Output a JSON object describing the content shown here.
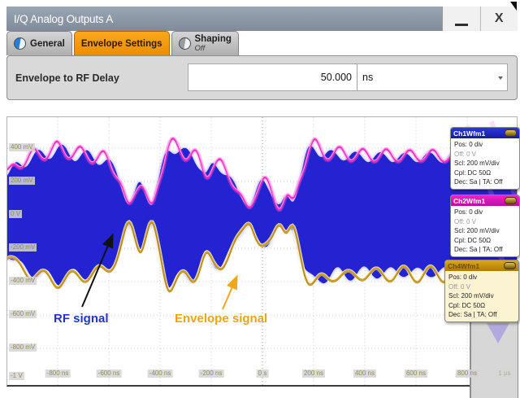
{
  "window": {
    "title": "I/Q Analog Outputs A",
    "controls": {
      "minimize_symbol": "_",
      "close_symbol": "X"
    }
  },
  "tabs": [
    {
      "label": "General",
      "indicator": "blue-half-circle",
      "selected": false
    },
    {
      "label": "Envelope Settings",
      "selected": true
    },
    {
      "label": "Shaping",
      "sublabel": "Off",
      "indicator": "gray-half-circle",
      "selected": false
    }
  ],
  "form": {
    "label": "Envelope to RF Delay",
    "value": "50.000",
    "unit": "ns"
  },
  "scope": {
    "y_axis_labels": [
      "400 mV",
      "200 mV",
      "0 V",
      "-200 mV",
      "-400 mV",
      "-600 mV",
      "-800 mV",
      "-1 V"
    ],
    "x_axis_labels": [
      "-800 ns",
      "-600 ns",
      "-400 ns",
      "-200 ns",
      "0 s",
      "200 ns",
      "400 ns",
      "600 ns",
      "800 ns",
      "1 µs"
    ],
    "annotations": [
      {
        "text": "RF signal",
        "color": "#2233cc"
      },
      {
        "text": "Envelope signal",
        "color": "#eaa513"
      }
    ],
    "channels": [
      {
        "name": "Ch1Wfm1",
        "header_color": "#2c36df",
        "header_color2": "#161d9e",
        "text_color": "#ffffff",
        "body_color": "#ffffff",
        "lines": [
          "Pos: 0 div",
          "Off: 0 V",
          "Scl: 200 mV/div",
          "Cpl: DC 50Ω",
          "Dec: Sa | TA: Off"
        ]
      },
      {
        "name": "Ch2Wfm1",
        "header_color": "#f523cd",
        "header_color2": "#b60f98",
        "text_color": "#ffffff",
        "body_color": "#ffffff",
        "lines": [
          "Pos: 0 div",
          "Off: 0 V",
          "Scl: 200 mV/div",
          "Cpl: DC 50Ω",
          "Dec: Sa | TA: Off"
        ]
      },
      {
        "name": "Ch4Wfm1",
        "header_color": "#dca818",
        "header_color2": "#a87c08",
        "text_color": "#6b4e00",
        "body_color": "#fbf3d2",
        "lines": [
          "Pos: 0 div",
          "Off: 0 V",
          "Scl: 200 mV/div",
          "Cpl: DC 50Ω",
          "Dec: Sa | TA: Off"
        ]
      }
    ],
    "chart_data": {
      "type": "line",
      "x_unit": "ns",
      "y_unit": "mV",
      "x_range_ns": [
        -1000,
        1010
      ],
      "y_range_mV": [
        -1050,
        620
      ],
      "x_scale": "200 ns/div",
      "y_scale": "200 mV/div",
      "series_note": "Blue Ch1 = amplitude-modulated RF burst (filled band ±envelope around 0 V); magenta Ch2 = envelope signal riding the top edge; yellow Ch4 = inverted envelope riding the bottom edge. envelope_points = [time_ns, envelope_amplitude_mV].",
      "colors": {
        "rf": "#2323d2",
        "envelope_top": "#f02cc4",
        "envelope_bottom": "#cf9e22"
      },
      "envelope_points": [
        [
          -997,
          220
        ],
        [
          -959,
          302
        ],
        [
          -895,
          341
        ],
        [
          -800,
          390
        ],
        [
          -737,
          361
        ],
        [
          -673,
          346
        ],
        [
          -610,
          327
        ],
        [
          -562,
          234
        ],
        [
          -540,
          117
        ],
        [
          -521,
          34
        ],
        [
          -498,
          127
        ],
        [
          -476,
          224
        ],
        [
          -451,
          98
        ],
        [
          -429,
          29
        ],
        [
          -400,
          234
        ],
        [
          -368,
          429
        ],
        [
          -337,
          390
        ],
        [
          -305,
          356
        ],
        [
          -273,
          371
        ],
        [
          -241,
          293
        ],
        [
          -219,
          205
        ],
        [
          -197,
          302
        ],
        [
          -165,
          293
        ],
        [
          -133,
          234
        ],
        [
          -102,
          156
        ],
        [
          -70,
          73
        ],
        [
          -48,
          34
        ],
        [
          -22,
          146
        ],
        [
          0,
          220
        ],
        [
          25,
          171
        ],
        [
          51,
          73
        ],
        [
          70,
          39
        ],
        [
          95,
          137
        ],
        [
          121,
          49
        ],
        [
          146,
          220
        ],
        [
          175,
          366
        ],
        [
          200,
          410
        ],
        [
          232,
          380
        ],
        [
          279,
          341
        ],
        [
          327,
          371
        ],
        [
          375,
          332
        ],
        [
          422,
          361
        ],
        [
          470,
          332
        ],
        [
          517,
          361
        ],
        [
          565,
          327
        ],
        [
          613,
          361
        ],
        [
          660,
          332
        ],
        [
          708,
          356
        ],
        [
          756,
          327
        ],
        [
          803,
          356
        ],
        [
          851,
          332
        ],
        [
          898,
          356
        ],
        [
          946,
          332
        ],
        [
          1000,
          351
        ]
      ]
    }
  }
}
